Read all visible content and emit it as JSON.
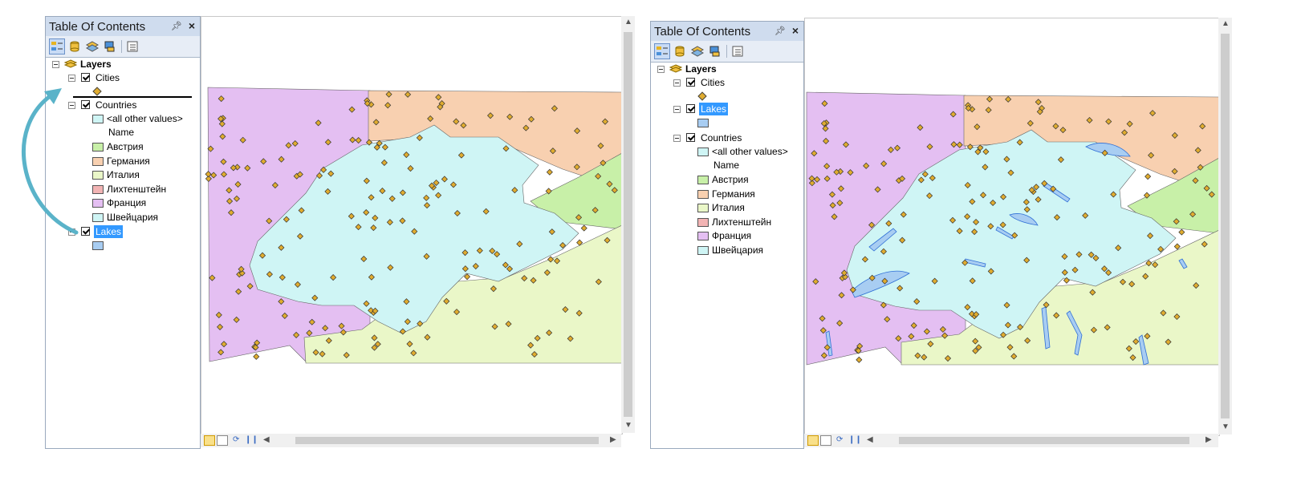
{
  "left": {
    "toc": {
      "title": "Table Of Contents",
      "pin": "ᵖ",
      "close": "×",
      "layers_label": "Layers",
      "cities_label": "Cities",
      "countries_label": "Countries",
      "all_other": "<all other values>",
      "name_header": "Name",
      "countries": [
        {
          "label": "Австрия",
          "color": "#c8f0a8"
        },
        {
          "label": "Германия",
          "color": "#f8d0b0"
        },
        {
          "label": "Италия",
          "color": "#eaf7c8"
        },
        {
          "label": "Лихтенштейн",
          "color": "#f2b4b4"
        },
        {
          "label": "Франция",
          "color": "#e4bff2"
        },
        {
          "label": "Швейцария",
          "color": "#cff5f5"
        }
      ],
      "lakes_label": "Lakes"
    }
  },
  "right": {
    "toc": {
      "title": "Table Of Contents",
      "pin": "ᵖ",
      "close": "×",
      "layers_label": "Layers",
      "cities_label": "Cities",
      "lakes_label": "Lakes",
      "countries_label": "Countries",
      "all_other": "<all other values>",
      "name_header": "Name",
      "countries": [
        {
          "label": "Австрия",
          "color": "#c8f0a8"
        },
        {
          "label": "Германия",
          "color": "#f8d0b0"
        },
        {
          "label": "Италия",
          "color": "#eaf7c8"
        },
        {
          "label": "Лихтенштейн",
          "color": "#f2b4b4"
        },
        {
          "label": "Франция",
          "color": "#e4bff2"
        },
        {
          "label": "Швейцария",
          "color": "#cff5f5"
        }
      ]
    }
  },
  "colors": {
    "austria": "#c8f0a8",
    "germany": "#f8d0b0",
    "italy": "#eaf7c8",
    "liechtenstein": "#f2b4b4",
    "france": "#e4bff2",
    "switzerland": "#cff5f5",
    "lakes": "#a8cdf2",
    "city": "#e0ac2f",
    "arrow": "#5ab3c9"
  },
  "icons": {
    "expand": "minus-box-icon",
    "layers": "layers-stack-icon",
    "refresh": "refresh-icon",
    "pause": "pause-icon"
  }
}
